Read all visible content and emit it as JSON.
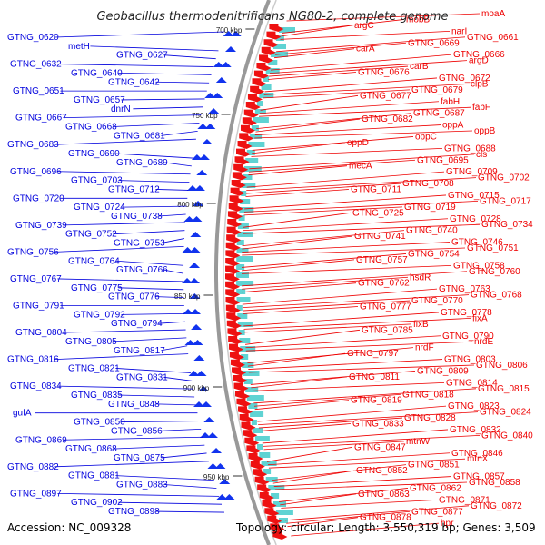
{
  "title": "Geobacillus thermodenitrificans NG80-2, complete genome",
  "footer": {
    "accession": "Accession: NC_009328",
    "topology": "Topology: circular; Length: 3,550,319 bp; Genes: 3,509"
  },
  "colors": {
    "left_labels": "#0000dd",
    "right_labels": "#ee0000",
    "backbone": "#999999",
    "forward_arrows": "#ee1111",
    "reverse_arrows": "#1133ee"
  },
  "scale_ticks": [
    "700 kbp",
    "750 kbp",
    "800 kbp",
    "850 kbp",
    "900 kbp",
    "950 kbp"
  ],
  "left_labels": [
    "GTNG_0620",
    "metH",
    "GTNG_0627",
    "GTNG_0632",
    "GTNG_0640",
    "GTNG_0642",
    "GTNG_0651",
    "GTNG_0657",
    "dnrN",
    "GTNG_0667",
    "GTNG_0668",
    "GTNG_0681",
    "GTNG_0683",
    "GTNG_0690",
    "GTNG_0689",
    "GTNG_0696",
    "GTNG_0703",
    "GTNG_0712",
    "GTNG_0720",
    "GTNG_0724",
    "GTNG_0738",
    "GTNG_0739",
    "GTNG_0752",
    "GTNG_0753",
    "GTNG_0756",
    "GTNG_0764",
    "GTNG_0766",
    "GTNG_0767",
    "GTNG_0775",
    "GTNG_0776",
    "GTNG_0791",
    "GTNG_0792",
    "GTNG_0794",
    "GTNG_0804",
    "GTNG_0805",
    "GTNG_0817",
    "GTNG_0816",
    "GTNG_0821",
    "GTNG_0831",
    "GTNG_0834",
    "GTNG_0835",
    "GTNG_0848",
    "gufA",
    "GTNG_0850",
    "GTNG_0856",
    "GTNG_0869",
    "GTNG_0868",
    "GTNG_0875",
    "GTNG_0882",
    "GTNG_0881",
    "GTNG_0883",
    "GTNG_0897",
    "GTNG_0902",
    "GTNG_0898"
  ],
  "right_labels": [
    "moaA",
    "mobB",
    "argC",
    "narI",
    "GTNG_0661",
    "GTNG_0669",
    "carA",
    "GTNG_0666",
    "argD",
    "carB",
    "GTNG_0676",
    "GTNG_0672",
    "clpB",
    "GTNG_0679",
    "GTNG_0677",
    "fabH",
    "fabF",
    "GTNG_0687",
    "GTNG_0682",
    "oppA",
    "oppB",
    "oppC",
    "oppD",
    "GTNG_0688",
    "cls",
    "GTNG_0695",
    "mecA",
    "GTNG_0709",
    "GTNG_0702",
    "GTNG_0708",
    "GTNG_0711",
    "GTNG_0715",
    "GTNG_0717",
    "GTNG_0719",
    "GTNG_0725",
    "GTNG_0728",
    "GTNG_0734",
    "GTNG_0740",
    "GTNG_0741",
    "GTNG_0746",
    "GTNG_0751",
    "GTNG_0754",
    "GTNG_0757",
    "GTNG_0758",
    "GTNG_0760",
    "hsdR",
    "GTNG_0762",
    "GTNG_0763",
    "GTNG_0768",
    "GTNG_0770",
    "GTNG_0777",
    "GTNG_0778",
    "fixA",
    "fixB",
    "GTNG_0785",
    "GTNG_0790",
    "nrdE",
    "nrdF",
    "GTNG_0797",
    "GTNG_0803",
    "GTNG_0806",
    "GTNG_0809",
    "GTNG_0811",
    "GTNG_0814",
    "GTNG_0815",
    "GTNG_0818",
    "GTNG_0819",
    "GTNG_0823",
    "GTNG_0824",
    "GTNG_0828",
    "GTNG_0833",
    "GTNG_0832",
    "GTNG_0840",
    "mtnW",
    "GTNG_0847",
    "GTNG_0846",
    "mtnX",
    "GTNG_0851",
    "GTNG_0852",
    "GTNG_0857",
    "GTNG_0858",
    "GTNG_0862",
    "GTNG_0863",
    "GTNG_0871",
    "GTNG_0872",
    "GTNG_0877",
    "GTNG_0878",
    "hpr"
  ]
}
